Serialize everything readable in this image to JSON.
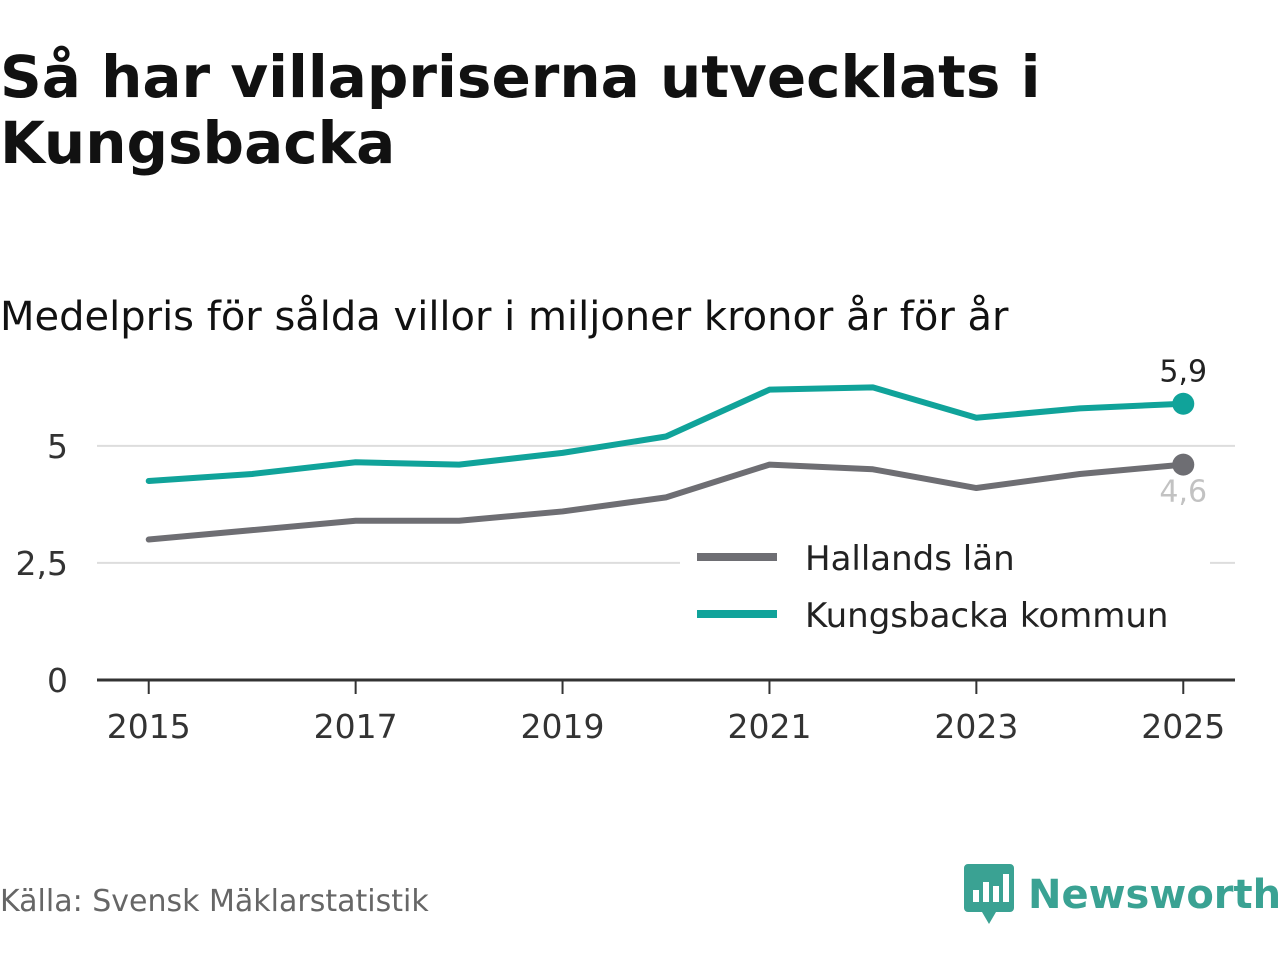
{
  "title": "Så har villapriserna utvecklats i Kungsbacka",
  "subtitle": "Medelpris för sålda villor i miljoner kronor år för år",
  "source": "Källa: Svensk Mäklarstatistik",
  "brand": {
    "name": "Newsworthy",
    "icon": "newsworthy-logo-icon",
    "color": "#3aa293"
  },
  "chart_data": {
    "type": "line",
    "x": [
      2015,
      2016,
      2017,
      2018,
      2019,
      2020,
      2021,
      2022,
      2023,
      2024,
      2025
    ],
    "x_tick_labels": [
      "2015",
      "2017",
      "2019",
      "2021",
      "2023",
      "2025"
    ],
    "y_ticks": [
      0,
      2.5,
      5
    ],
    "y_tick_labels": [
      "0",
      "2,5",
      "5"
    ],
    "ylim": [
      0,
      6.3
    ],
    "grid": true,
    "legend_position": "bottom-right",
    "series": [
      {
        "name": "Hallands län",
        "color": "#6e6e73",
        "values": [
          3.0,
          3.2,
          3.4,
          3.4,
          3.6,
          3.9,
          4.6,
          4.5,
          4.1,
          4.4,
          4.6
        ],
        "end_label": "4,6"
      },
      {
        "name": "Kungsbacka kommun",
        "color": "#10a39a",
        "values": [
          4.25,
          4.4,
          4.65,
          4.6,
          4.85,
          5.2,
          6.2,
          6.25,
          5.6,
          5.8,
          5.9
        ],
        "end_label": "5,9"
      }
    ]
  }
}
